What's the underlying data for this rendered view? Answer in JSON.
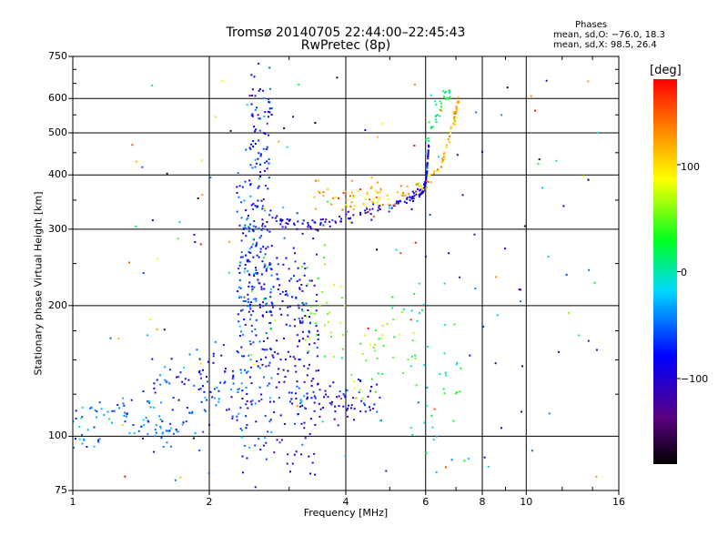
{
  "title": "Tromsø 20140705 22:44:00–22:45:43",
  "subtitle": "RwPretec (8p)",
  "phases_box": {
    "heading": "Phases",
    "line1": "mean, sd,O: −76.0, 18.3",
    "line2": "mean, sd,X:  98.5, 26.4"
  },
  "colorbar": {
    "title": "[deg]",
    "ticks": [
      "100",
      "0",
      "−100"
    ],
    "tick_values": [
      100,
      0,
      -100
    ],
    "range": [
      -180,
      180
    ],
    "colormap": "rainbow (black → purple → blue → cyan → green → yellow → red)"
  },
  "chart_data": {
    "type": "scatter",
    "title": "Tromsø 20140705 22:44:00–22:45:43",
    "subtitle": "RwPretec (8p)",
    "xlabel": "Frequency [MHz]",
    "ylabel": "Stationary phase Virtual Height [km]",
    "xscale": "log",
    "yscale": "log",
    "xlim": [
      1,
      16
    ],
    "ylim": [
      75,
      750
    ],
    "x_ticks": [
      1,
      2,
      4,
      6,
      8,
      10,
      16
    ],
    "x_tick_labels": [
      "1",
      "2",
      "4",
      "6",
      "8",
      "10",
      "16"
    ],
    "y_ticks": [
      75,
      100,
      200,
      300,
      400,
      500,
      600,
      750
    ],
    "y_tick_labels": [
      "75",
      "100",
      "200",
      "300",
      "400",
      "500",
      "600",
      "750"
    ],
    "grid": true,
    "color_dimension": "Phase [deg]",
    "clusters": [
      {
        "name": "",
        "f_range": [
          1.0,
          1.35
        ],
        "h": 113,
        "h_spread": 4,
        "phase": -50,
        "n": 30
      },
      {
        "name": "",
        "f_range": [
          1.0,
          1.15
        ],
        "h": 99,
        "h_spread": 3,
        "phase": -40,
        "n": 15
      },
      {
        "name": "",
        "f_range": [
          1.3,
          1.75
        ],
        "h": 104,
        "h_spread": 4,
        "phase": -45,
        "n": 30
      },
      {
        "name": "",
        "f_range": [
          1.4,
          2.4
        ],
        "h": 122,
        "h_spread": 16,
        "phase": -55,
        "n": 70
      },
      {
        "name": "",
        "f_range": [
          1.65,
          2.3
        ],
        "h": 140,
        "h_spread": 15,
        "phase": -70,
        "n": 40
      },
      {
        "name": "",
        "f_range": [
          2.3,
          2.75
        ],
        "h": 200,
        "h_spread": 85,
        "phase": -70,
        "n": 260
      },
      {
        "name": "",
        "f_range": [
          2.45,
          2.75
        ],
        "h": 420,
        "h_spread": 140,
        "phase": -80,
        "n": 120
      },
      {
        "name": "",
        "f_range": [
          2.75,
          3.5
        ],
        "h": 160,
        "h_spread": 60,
        "phase": -95,
        "n": 170
      },
      {
        "name": "",
        "f_range": [
          3.0,
          4.8
        ],
        "h": 120,
        "h_spread": 8,
        "phase": -80,
        "n": 80
      },
      {
        "name": "",
        "f_range": [
          3.2,
          4.0
        ],
        "h": 190,
        "h_spread": 25,
        "phase": 60,
        "n": 30
      },
      {
        "name": "",
        "f_range": [
          3.9,
          5.0
        ],
        "h": 155,
        "h_spread": 25,
        "phase": 50,
        "n": 30
      },
      {
        "name": "",
        "f_range": [
          3.4,
          4.8
        ],
        "h": 360,
        "h_spread": 25,
        "phase": 120,
        "n": 45
      },
      {
        "name": "",
        "f_range": [
          5.0,
          6.0
        ],
        "h": 180,
        "h_spread": 25,
        "phase": 40,
        "n": 15
      },
      {
        "name": "",
        "f_range": [
          5.5,
          7.2
        ],
        "h": 130,
        "h_spread": 40,
        "phase": 0,
        "n": 40
      }
    ],
    "traces": [
      {
        "name": "",
        "points": [
          [
            2.75,
            315
          ],
          [
            3.0,
            312
          ],
          [
            3.5,
            308
          ],
          [
            4.0,
            315
          ],
          [
            4.5,
            330
          ],
          [
            5.0,
            340
          ],
          [
            5.5,
            352
          ],
          [
            5.9,
            362
          ],
          [
            6.0,
            380
          ],
          [
            6.05,
            420
          ],
          [
            6.1,
            470
          ]
        ],
        "spread": 5,
        "phase": -95,
        "n": 160
      },
      {
        "name": "",
        "points": [
          [
            4.5,
            345
          ],
          [
            5.0,
            352
          ],
          [
            5.5,
            365
          ],
          [
            6.0,
            380
          ],
          [
            6.3,
            400
          ],
          [
            6.6,
            440
          ],
          [
            6.8,
            500
          ],
          [
            7.0,
            560
          ],
          [
            7.1,
            600
          ]
        ],
        "spread": 8,
        "phase": 110,
        "n": 90
      },
      {
        "name": "",
        "points": [
          [
            6.0,
            470
          ],
          [
            6.3,
            540
          ],
          [
            6.6,
            600
          ],
          [
            6.8,
            620
          ]
        ],
        "spread": 15,
        "phase": 20,
        "n": 30
      }
    ]
  }
}
